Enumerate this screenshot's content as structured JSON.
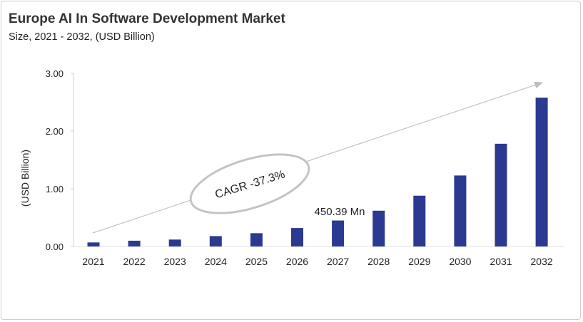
{
  "chart_data": {
    "type": "bar",
    "title": "Europe AI In Software Development Market",
    "subtitle": "Size, 2021 - 2032, (USD Billion)",
    "ylabel": "(USD Billion)",
    "xlabel": "",
    "categories": [
      "2021",
      "2022",
      "2023",
      "2024",
      "2025",
      "2026",
      "2027",
      "2028",
      "2029",
      "2030",
      "2031",
      "2032"
    ],
    "values": [
      0.07,
      0.1,
      0.12,
      0.18,
      0.23,
      0.32,
      0.45,
      0.62,
      0.88,
      1.23,
      1.78,
      2.58
    ],
    "ylim": [
      0,
      3
    ],
    "yticks": [
      "0.00",
      "1.00",
      "2.00",
      "3.00"
    ],
    "grid": false,
    "bar_color": "#2b3990",
    "annotations": {
      "bar_label": "450.39 Mn",
      "cagr": "CAGR -37.3%"
    }
  }
}
